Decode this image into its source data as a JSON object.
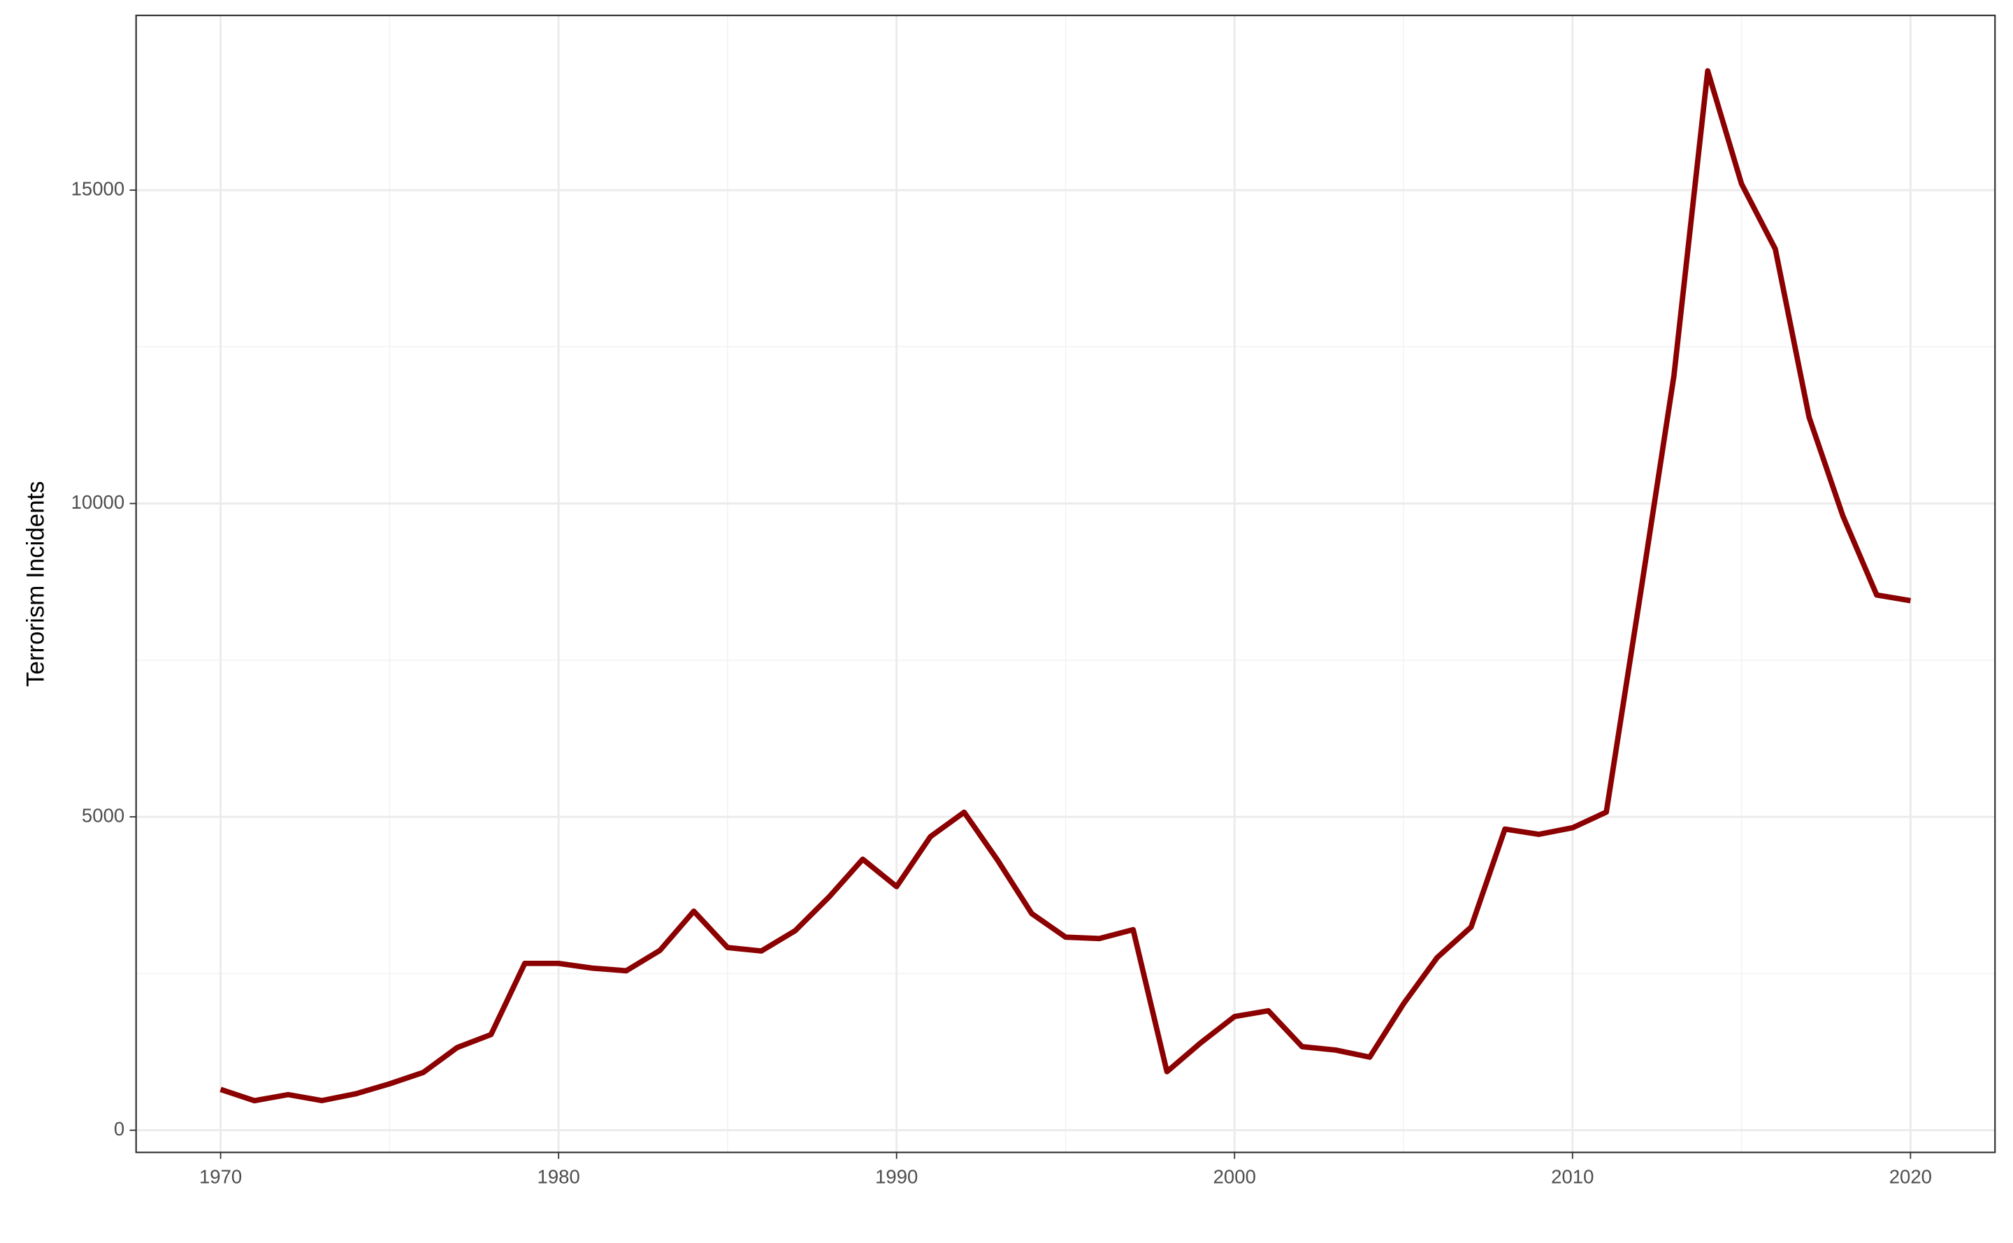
{
  "chart_data": {
    "type": "line",
    "y_label": "Terrorism Incidents",
    "x": [
      1970,
      1971,
      1972,
      1973,
      1974,
      1975,
      1976,
      1977,
      1978,
      1979,
      1980,
      1981,
      1982,
      1983,
      1984,
      1985,
      1986,
      1987,
      1988,
      1989,
      1990,
      1991,
      1992,
      1993,
      1994,
      1995,
      1996,
      1997,
      1998,
      1999,
      2000,
      2001,
      2002,
      2003,
      2004,
      2005,
      2006,
      2007,
      2008,
      2009,
      2010,
      2011,
      2012,
      2013,
      2014,
      2015,
      2016,
      2017,
      2018,
      2019,
      2020
    ],
    "series": [
      {
        "name": "Terrorism Incidents",
        "color": "#8b0000",
        "values": [
          651,
          471,
          568,
          473,
          581,
          740,
          923,
          1319,
          1526,
          2662,
          2662,
          2586,
          2544,
          2870,
          3495,
          2915,
          2860,
          3183,
          3720,
          4324,
          3887,
          4683,
          5073,
          4300,
          3456,
          3081,
          3058,
          3200,
          934,
          1395,
          1814,
          1906,
          1333,
          1278,
          1166,
          2017,
          2758,
          3242,
          4805,
          4721,
          4826,
          5076,
          8522,
          12036,
          16903,
          15100,
          14060,
          11377,
          9800,
          8540,
          8450
        ]
      }
    ],
    "xlim": [
      1967.5,
      2022.5
    ],
    "xticks": [
      1970,
      1980,
      1990,
      2000,
      2010,
      2020
    ],
    "ylim": [
      -354,
      17788
    ],
    "yticks": [
      0,
      5000,
      10000,
      15000
    ],
    "grid": true
  }
}
